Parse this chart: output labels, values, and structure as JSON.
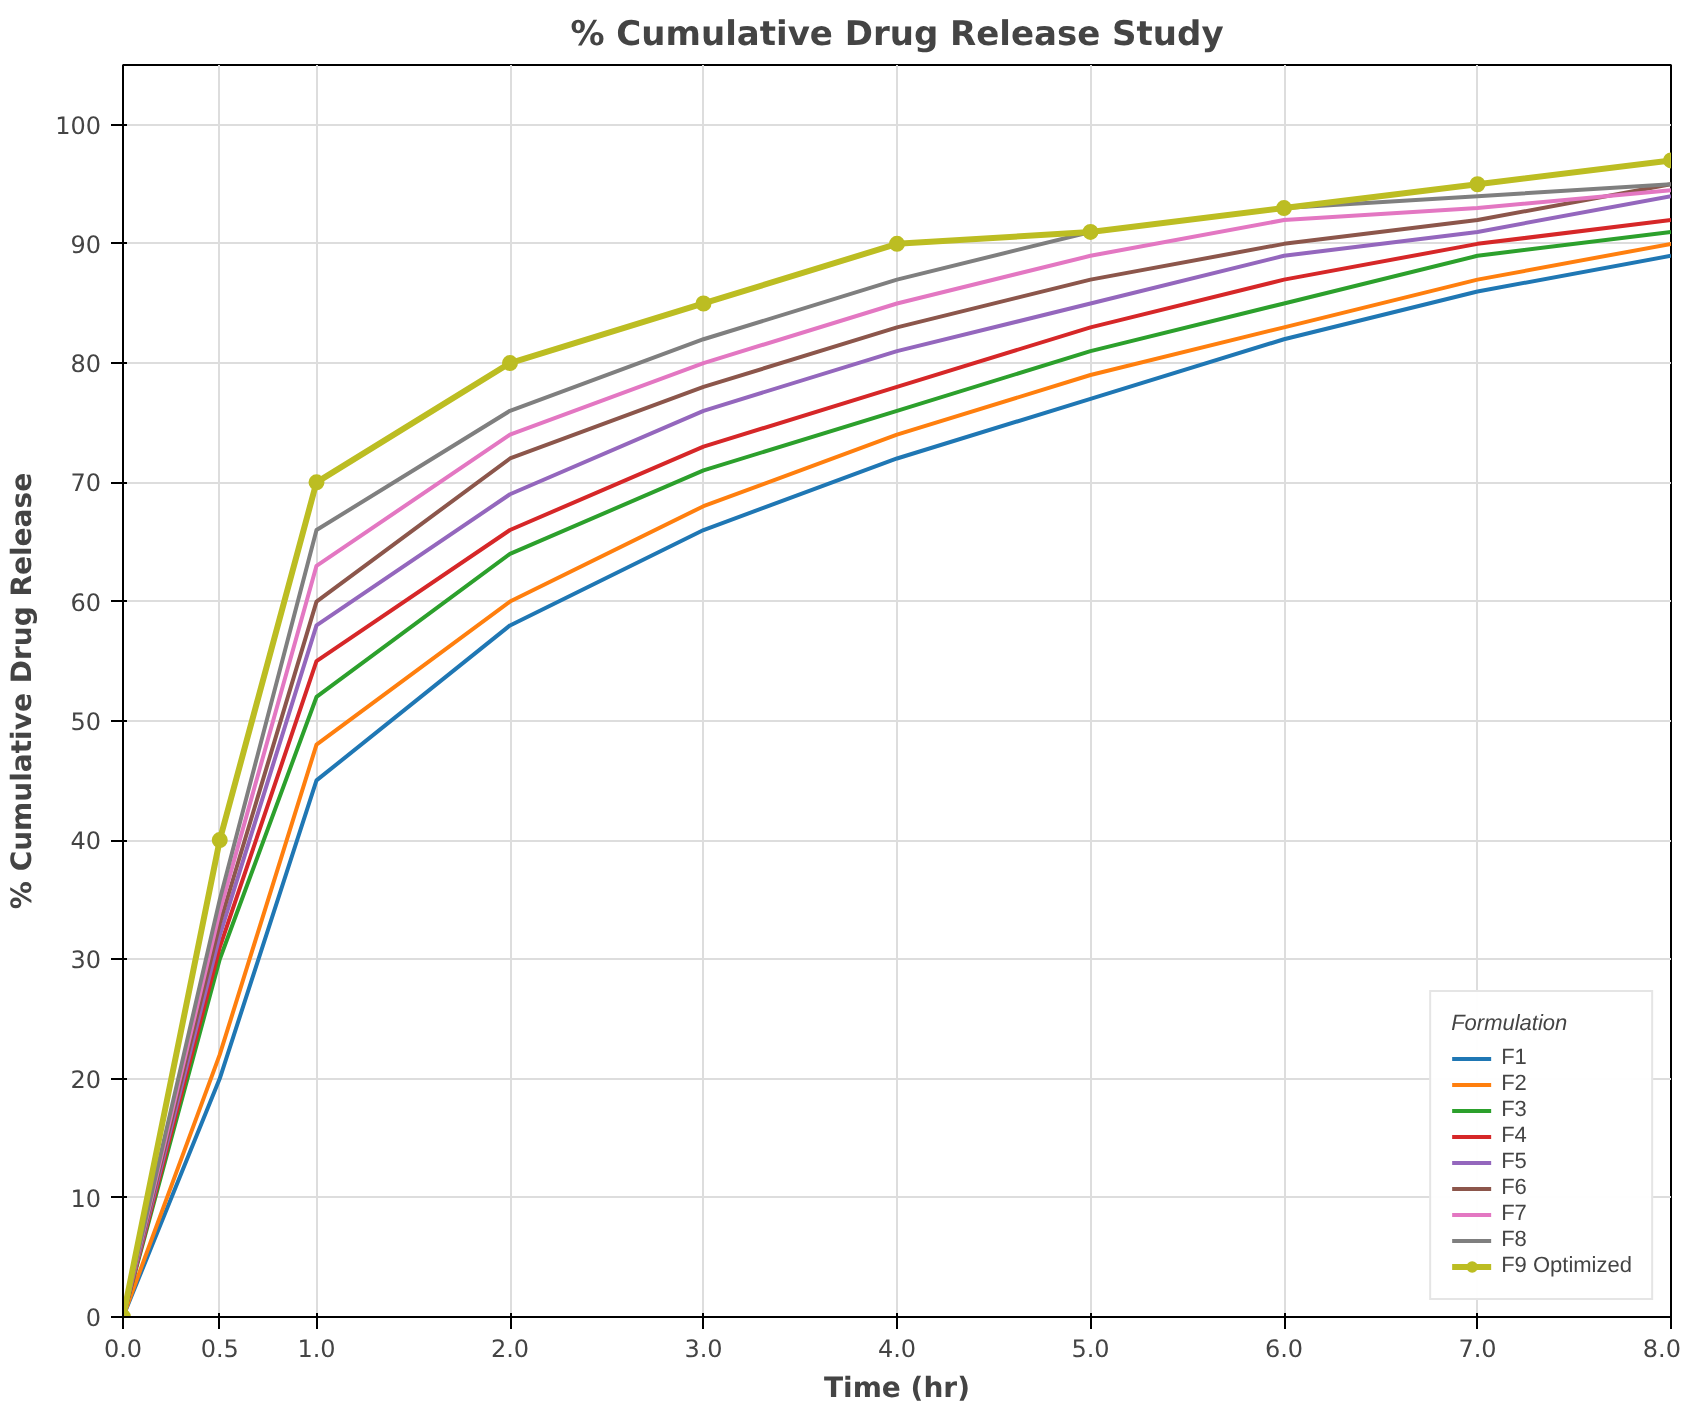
{
  "chart_data": {
    "type": "line",
    "title": "% Cumulative Drug Release Study",
    "xlabel": "Time (hr)",
    "ylabel": "% Cumulative Drug Release",
    "legend_title": "Formulation",
    "legend": "bottom right",
    "grid": true,
    "marker": "none",
    "line_style": "solid",
    "x": [
      0,
      0.5,
      1,
      2,
      3,
      4,
      5,
      6,
      7,
      8
    ],
    "xlim": [
      0,
      8
    ],
    "ylim": [
      0,
      105
    ],
    "xticks": [
      {
        "value": 0,
        "label": "0.0"
      },
      {
        "value": 0.5,
        "label": "0.5"
      },
      {
        "value": 1,
        "label": "1.0"
      },
      {
        "value": 2,
        "label": "2.0"
      },
      {
        "value": 3,
        "label": "3.0"
      },
      {
        "value": 4,
        "label": "4.0"
      },
      {
        "value": 5,
        "label": "5.0"
      },
      {
        "value": 6,
        "label": "6.0"
      },
      {
        "value": 7,
        "label": "7.0"
      },
      {
        "value": 8,
        "label": "8.0"
      }
    ],
    "yticks": [
      0,
      10,
      20,
      30,
      40,
      50,
      60,
      70,
      80,
      90,
      100
    ],
    "series": [
      {
        "name": "F1",
        "color": "#1f77b4",
        "values": [
          0,
          20,
          45,
          58,
          66,
          72,
          77,
          82,
          86,
          89
        ]
      },
      {
        "name": "F2",
        "color": "#ff7f0e",
        "values": [
          0,
          22,
          48,
          60,
          68,
          74,
          79,
          83,
          87,
          90
        ]
      },
      {
        "name": "F3",
        "color": "#2ca02c",
        "values": [
          0,
          30,
          52,
          64,
          71,
          76,
          81,
          85,
          89,
          91
        ]
      },
      {
        "name": "F4",
        "color": "#d62728",
        "values": [
          0,
          31,
          55,
          66,
          73,
          78,
          83,
          87,
          90,
          92
        ]
      },
      {
        "name": "F5",
        "color": "#9467bd",
        "values": [
          0,
          32,
          58,
          69,
          76,
          81,
          85,
          89,
          91,
          94
        ]
      },
      {
        "name": "F6",
        "color": "#8c564b",
        "values": [
          0,
          33,
          60,
          72,
          78,
          83,
          87,
          90,
          92,
          95
        ]
      },
      {
        "name": "F7",
        "color": "#e377c2",
        "values": [
          0,
          34,
          63,
          74,
          80,
          85,
          89,
          92,
          93,
          94.5
        ]
      },
      {
        "name": "F8",
        "color": "#7f7f7f",
        "values": [
          0,
          35,
          66,
          76,
          82,
          87,
          91,
          93,
          94,
          95
        ]
      },
      {
        "name": "F9 Optimized",
        "color": "#bcbd22",
        "marker": "circle",
        "values": [
          0,
          40,
          70,
          80,
          85,
          90,
          91,
          93,
          95,
          97
        ]
      }
    ]
  }
}
